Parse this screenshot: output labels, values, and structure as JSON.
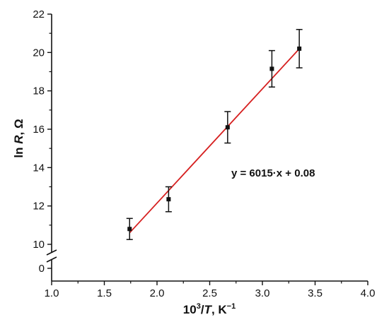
{
  "chart_data": {
    "type": "scatter",
    "xlabel_parts": {
      "base": "10",
      "sup": "3",
      "slash": "/",
      "var": "T",
      "unit": ", K",
      "unit_sup": "−1"
    },
    "ylabel_parts": {
      "pre": "ln ",
      "var": "R",
      "unit": ", Ω"
    },
    "xlim": [
      1.0,
      4.0
    ],
    "ylim": [
      10,
      22
    ],
    "y_extra_tick": 0,
    "y_axis_break": true,
    "x_ticks": [
      "1.0",
      "1.5",
      "2.0",
      "2.5",
      "3.0",
      "3.5",
      "4.0"
    ],
    "y_ticks": [
      "0",
      "10",
      "12",
      "14",
      "16",
      "18",
      "20",
      "22"
    ],
    "grid": false,
    "points": [
      {
        "x": 1.74,
        "y": 10.8,
        "err": 0.55
      },
      {
        "x": 2.11,
        "y": 12.35,
        "err": 0.65
      },
      {
        "x": 2.67,
        "y": 16.1,
        "err": 0.82
      },
      {
        "x": 3.09,
        "y": 19.15,
        "err": 0.95
      },
      {
        "x": 3.35,
        "y": 20.2,
        "err": 1.0
      }
    ],
    "fit_line": {
      "x": [
        1.74,
        3.36
      ],
      "y": [
        10.6,
        20.25
      ],
      "color": "#d62020"
    },
    "annotation": "y = 6015·x + 0.08",
    "marker_color": "#111111"
  }
}
